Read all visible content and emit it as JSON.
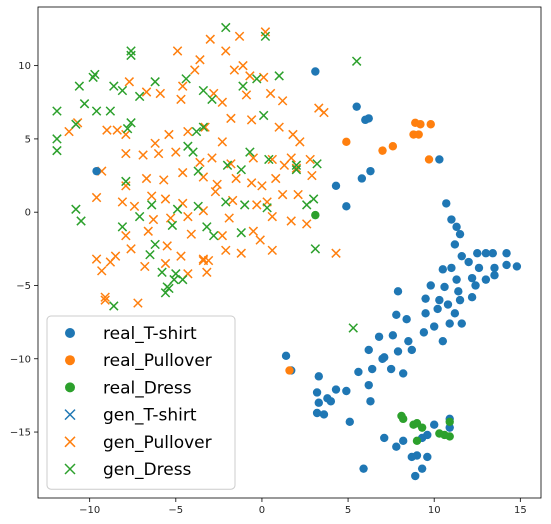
{
  "chart_data": {
    "type": "scatter",
    "title": "",
    "xlabel": "",
    "ylabel": "",
    "xlim": [
      -13.0,
      16.2
    ],
    "ylim": [
      -19.5,
      14.0
    ],
    "xticks": [
      -10,
      -5,
      0,
      5,
      10,
      15
    ],
    "yticks": [
      -15,
      -10,
      -5,
      0,
      5,
      10
    ],
    "xtick_labels": [
      "−10",
      "−5",
      "0",
      "5",
      "10",
      "15"
    ],
    "ytick_labels": [
      "−15",
      "−10",
      "−5",
      "0",
      "5",
      "10"
    ],
    "grid": false,
    "legend_position": "lower-left",
    "series": [
      {
        "name": "real_T-shirt",
        "marker": "circle",
        "color": "#1f77b4",
        "points": [
          [
            -9.6,
            2.8
          ],
          [
            3.1,
            9.6
          ],
          [
            5.5,
            7.2
          ],
          [
            6.0,
            6.3
          ],
          [
            6.2,
            6.4
          ],
          [
            10.3,
            3.6
          ],
          [
            6.3,
            2.8
          ],
          [
            5.8,
            2.3
          ],
          [
            4.3,
            1.8
          ],
          [
            4.9,
            0.4
          ],
          [
            10.7,
            0.6
          ],
          [
            11.0,
            -0.5
          ],
          [
            11.3,
            -1.0
          ],
          [
            11.5,
            -1.5
          ],
          [
            11.2,
            -2.2
          ],
          [
            11.6,
            -3.0
          ],
          [
            12.5,
            -2.8
          ],
          [
            13.0,
            -2.8
          ],
          [
            13.4,
            -2.8
          ],
          [
            14.2,
            -2.8
          ],
          [
            14.8,
            -3.7
          ],
          [
            12.0,
            -3.4
          ],
          [
            12.6,
            -3.8
          ],
          [
            13.5,
            -3.8
          ],
          [
            14.2,
            -3.6
          ],
          [
            11.0,
            -3.8
          ],
          [
            10.5,
            -3.9
          ],
          [
            12.2,
            -4.5
          ],
          [
            11.3,
            -4.6
          ],
          [
            13.0,
            -4.6
          ],
          [
            13.5,
            -4.3
          ],
          [
            9.8,
            -5.0
          ],
          [
            10.6,
            -5.1
          ],
          [
            11.4,
            -5.4
          ],
          [
            12.2,
            -5.8
          ],
          [
            12.4,
            -5.0
          ],
          [
            7.9,
            -5.4
          ],
          [
            9.5,
            -5.9
          ],
          [
            10.3,
            -6.0
          ],
          [
            10.8,
            -6.3
          ],
          [
            11.5,
            -6.0
          ],
          [
            11.2,
            -6.9
          ],
          [
            10.2,
            -6.6
          ],
          [
            9.5,
            -6.9
          ],
          [
            8.4,
            -7.3
          ],
          [
            7.8,
            -7.0
          ],
          [
            10.9,
            -7.6
          ],
          [
            11.6,
            -7.6
          ],
          [
            10.0,
            -7.8
          ],
          [
            9.4,
            -8.2
          ],
          [
            7.6,
            -8.4
          ],
          [
            8.5,
            -8.8
          ],
          [
            6.8,
            -8.5
          ],
          [
            10.5,
            -8.8
          ],
          [
            8.7,
            -9.4
          ],
          [
            6.2,
            -9.4
          ],
          [
            7.9,
            -9.5
          ],
          [
            7.1,
            -9.9
          ],
          [
            7.0,
            -10.0
          ],
          [
            6.4,
            -10.7
          ],
          [
            5.6,
            -10.9
          ],
          [
            7.5,
            -10.7
          ],
          [
            8.2,
            -11.0
          ],
          [
            6.2,
            -11.8
          ],
          [
            4.3,
            -12.1
          ],
          [
            3.3,
            -11.2
          ],
          [
            1.4,
            -9.8
          ],
          [
            1.7,
            -10.8
          ],
          [
            3.2,
            -12.3
          ],
          [
            3.8,
            -12.7
          ],
          [
            3.3,
            -13.0
          ],
          [
            4.9,
            -12.2
          ],
          [
            4.0,
            -12.9
          ],
          [
            3.6,
            -13.8
          ],
          [
            3.2,
            -13.7
          ],
          [
            6.3,
            -12.9
          ],
          [
            5.1,
            -14.3
          ],
          [
            7.1,
            -15.4
          ],
          [
            8.2,
            -15.6
          ],
          [
            7.8,
            -16.0
          ],
          [
            9.3,
            -15.4
          ],
          [
            9.6,
            -15.2
          ],
          [
            10.0,
            -14.5
          ],
          [
            10.9,
            -14.1
          ],
          [
            10.9,
            -14.7
          ],
          [
            9.0,
            -16.6
          ],
          [
            8.7,
            -16.7
          ],
          [
            9.6,
            -16.7
          ],
          [
            9.3,
            -17.5
          ],
          [
            8.9,
            -18.0
          ],
          [
            5.9,
            -17.5
          ]
        ]
      },
      {
        "name": "real_Pullover",
        "marker": "circle",
        "color": "#ff7f0e",
        "points": [
          [
            4.9,
            4.8
          ],
          [
            7.0,
            4.2
          ],
          [
            7.6,
            4.5
          ],
          [
            8.9,
            6.1
          ],
          [
            9.2,
            6.0
          ],
          [
            9.8,
            6.0
          ],
          [
            8.8,
            5.3
          ],
          [
            9.1,
            5.3
          ],
          [
            9.7,
            3.6
          ],
          [
            1.6,
            -10.8
          ]
        ]
      },
      {
        "name": "real_Dress",
        "marker": "circle",
        "color": "#2ca02c",
        "points": [
          [
            3.1,
            -0.2
          ],
          [
            8.1,
            -13.9
          ],
          [
            8.2,
            -14.1
          ],
          [
            8.8,
            -14.5
          ],
          [
            9.0,
            -14.4
          ],
          [
            9.3,
            -14.7
          ],
          [
            10.9,
            -14.3
          ],
          [
            10.3,
            -15.1
          ],
          [
            10.6,
            -15.2
          ],
          [
            10.9,
            -15.3
          ],
          [
            9.0,
            -15.6
          ]
        ]
      },
      {
        "name": "gen_T-shirt",
        "marker": "x",
        "color": "#1f77b4",
        "points": []
      },
      {
        "name": "gen_Pullover",
        "marker": "x",
        "color": "#ff7f0e",
        "points": [
          [
            0.2,
            12.3
          ],
          [
            -1.3,
            12.0
          ],
          [
            -2.1,
            11.0
          ],
          [
            -3.0,
            11.8
          ],
          [
            -4.9,
            11.0
          ],
          [
            -3.6,
            10.4
          ],
          [
            -3.9,
            9.7
          ],
          [
            -1.6,
            9.7
          ],
          [
            -1.1,
            10.0
          ],
          [
            -0.7,
            9.3
          ],
          [
            -7.7,
            8.9
          ],
          [
            -6.7,
            8.2
          ],
          [
            -5.9,
            8.1
          ],
          [
            -4.6,
            8.6
          ],
          [
            -4.7,
            7.7
          ],
          [
            -2.8,
            8.1
          ],
          [
            -2.3,
            7.5
          ],
          [
            -0.9,
            8.0
          ],
          [
            0.1,
            9.2
          ],
          [
            0.5,
            8.1
          ],
          [
            1.2,
            7.6
          ],
          [
            3.3,
            7.1
          ],
          [
            3.6,
            6.8
          ],
          [
            -8.4,
            5.6
          ],
          [
            -9.0,
            5.6
          ],
          [
            -10.7,
            6.1
          ],
          [
            -11.2,
            5.5
          ],
          [
            -7.9,
            5.3
          ],
          [
            -6.2,
            4.7
          ],
          [
            -5.4,
            5.3
          ],
          [
            -4.3,
            5.5
          ],
          [
            -3.3,
            5.8
          ],
          [
            -2.3,
            4.8
          ],
          [
            -1.8,
            6.4
          ],
          [
            -0.6,
            6.3
          ],
          [
            1.0,
            5.8
          ],
          [
            1.8,
            5.3
          ],
          [
            2.2,
            4.8
          ],
          [
            -7.9,
            4.0
          ],
          [
            -6.9,
            3.9
          ],
          [
            -6.0,
            4.0
          ],
          [
            -5.0,
            4.1
          ],
          [
            -3.6,
            3.4
          ],
          [
            -2.9,
            3.7
          ],
          [
            -1.8,
            3.3
          ],
          [
            -0.5,
            3.7
          ],
          [
            0.6,
            3.6
          ],
          [
            1.3,
            3.2
          ],
          [
            2.0,
            3.0
          ],
          [
            -9.3,
            2.8
          ],
          [
            -7.9,
            1.8
          ],
          [
            -6.7,
            2.3
          ],
          [
            -5.7,
            2.2
          ],
          [
            -4.6,
            2.7
          ],
          [
            -3.4,
            2.4
          ],
          [
            -2.6,
            1.9
          ],
          [
            -1.5,
            2.3
          ],
          [
            -0.6,
            2.0
          ],
          [
            0.0,
            1.8
          ],
          [
            0.8,
            2.3
          ],
          [
            -9.6,
            1.0
          ],
          [
            -8.1,
            0.7
          ],
          [
            -7.4,
            0.4
          ],
          [
            -6.4,
            1.1
          ],
          [
            -5.6,
            0.9
          ],
          [
            -4.6,
            0.6
          ],
          [
            -2.7,
            1.4
          ],
          [
            -1.7,
            0.8
          ],
          [
            -0.3,
            0.5
          ],
          [
            0.3,
            0.7
          ],
          [
            1.2,
            1.2
          ],
          [
            2.1,
            1.2
          ],
          [
            -6.3,
            -0.5
          ],
          [
            -5.3,
            -0.4
          ],
          [
            -4.3,
            -0.3
          ],
          [
            -3.4,
            0.1
          ],
          [
            -1.9,
            -0.4
          ],
          [
            -0.5,
            -1.3
          ],
          [
            0.6,
            -0.3
          ],
          [
            1.7,
            -0.6
          ],
          [
            2.6,
            -0.8
          ],
          [
            -7.9,
            -1.6
          ],
          [
            -6.6,
            -1.3
          ],
          [
            -4.1,
            -1.5
          ],
          [
            -2.3,
            -1.6
          ],
          [
            -0.1,
            -1.9
          ],
          [
            -9.6,
            -3.2
          ],
          [
            -8.5,
            -3.0
          ],
          [
            -7.6,
            -2.5
          ],
          [
            -5.5,
            -2.3
          ],
          [
            -4.7,
            -3.0
          ],
          [
            -3.4,
            -3.3
          ],
          [
            -1.2,
            -2.8
          ],
          [
            -9.3,
            -4.0
          ],
          [
            -8.8,
            -3.4
          ],
          [
            -6.8,
            -3.7
          ],
          [
            -5.6,
            -3.5
          ],
          [
            -4.3,
            -4.2
          ],
          [
            -9.1,
            -5.8
          ],
          [
            -9.1,
            -6.0
          ],
          [
            -7.2,
            -6.2
          ],
          [
            -3.4,
            -3.2
          ],
          [
            -3.1,
            -3.3
          ],
          [
            -3.2,
            -4.1
          ],
          [
            -2.1,
            -2.6
          ],
          [
            0.6,
            -2.6
          ],
          [
            4.3,
            -2.8
          ],
          [
            2.8,
            3.6
          ],
          [
            1.7,
            3.7
          ],
          [
            2.9,
            2.5
          ]
        ]
      },
      {
        "name": "gen_Dress",
        "marker": "x",
        "color": "#2ca02c",
        "points": [
          [
            -2.1,
            12.6
          ],
          [
            0.2,
            12.0
          ],
          [
            -7.6,
            11.0
          ],
          [
            -7.6,
            10.7
          ],
          [
            -9.7,
            9.4
          ],
          [
            -9.8,
            9.2
          ],
          [
            -6.2,
            8.9
          ],
          [
            -4.4,
            9.1
          ],
          [
            -3.4,
            8.3
          ],
          [
            -1.1,
            8.6
          ],
          [
            -0.3,
            9.1
          ],
          [
            1.0,
            9.3
          ],
          [
            -10.6,
            8.6
          ],
          [
            -8.6,
            8.6
          ],
          [
            -8.1,
            8.3
          ],
          [
            -7.1,
            7.9
          ],
          [
            -2.9,
            7.7
          ],
          [
            -10.3,
            7.4
          ],
          [
            -9.6,
            6.9
          ],
          [
            -8.8,
            6.9
          ],
          [
            -7.6,
            6.1
          ],
          [
            -7.8,
            5.7
          ],
          [
            -3.8,
            5.5
          ],
          [
            -3.4,
            5.8
          ],
          [
            0.1,
            6.6
          ],
          [
            -11.9,
            6.9
          ],
          [
            -10.8,
            6.0
          ],
          [
            -11.9,
            5.0
          ],
          [
            -11.9,
            4.2
          ],
          [
            -4.3,
            4.5
          ],
          [
            -4.0,
            4.1
          ],
          [
            -0.7,
            4.1
          ],
          [
            0.4,
            3.6
          ],
          [
            2.0,
            3.2
          ],
          [
            -7.9,
            2.1
          ],
          [
            -3.7,
            2.8
          ],
          [
            -2.0,
            3.2
          ],
          [
            -1.2,
            2.9
          ],
          [
            3.2,
            3.3
          ],
          [
            -6.4,
            0.5
          ],
          [
            -4.9,
            0.2
          ],
          [
            -3.7,
            0.4
          ],
          [
            -2.1,
            0.7
          ],
          [
            -1.0,
            0.5
          ],
          [
            0.3,
            0.3
          ],
          [
            2.6,
            0.5
          ],
          [
            3.0,
            0.9
          ],
          [
            -10.8,
            0.2
          ],
          [
            -10.5,
            -0.6
          ],
          [
            -7.1,
            -0.3
          ],
          [
            -8.1,
            -1.0
          ],
          [
            -5.2,
            -0.9
          ],
          [
            -3.2,
            -1.0
          ],
          [
            -2.8,
            -1.6
          ],
          [
            -1.2,
            -1.4
          ],
          [
            -6.2,
            -2.2
          ],
          [
            -6.5,
            -2.9
          ],
          [
            -5.8,
            -4.1
          ],
          [
            -5.0,
            -4.2
          ],
          [
            -5.5,
            -5.1
          ],
          [
            -5.6,
            -5.5
          ],
          [
            -5.4,
            -5.2
          ],
          [
            -8.6,
            -6.4
          ],
          [
            -5.1,
            -4.6
          ],
          [
            -4.6,
            -4.6
          ],
          [
            3.1,
            -2.5
          ],
          [
            2.0,
            2.9
          ],
          [
            5.3,
            -7.9
          ],
          [
            5.5,
            10.3
          ]
        ]
      }
    ]
  }
}
